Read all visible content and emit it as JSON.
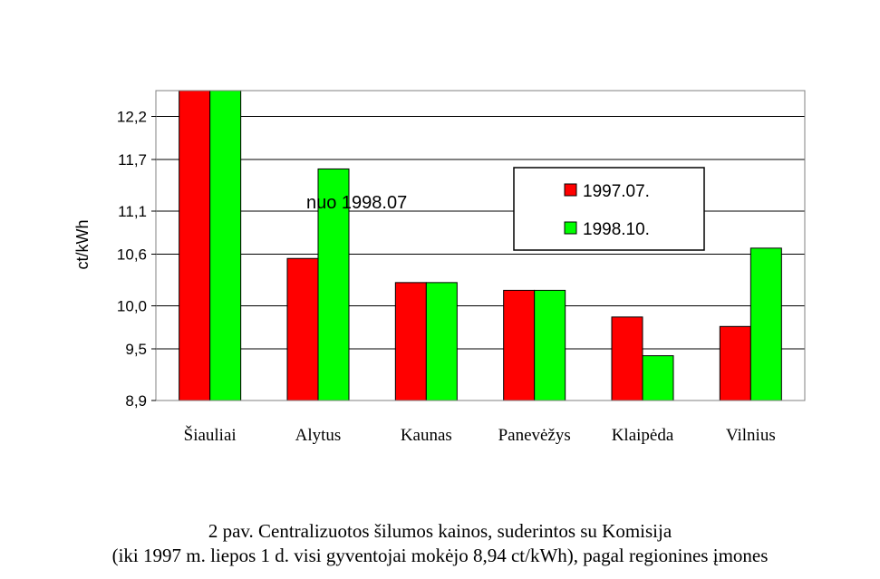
{
  "chart_data": {
    "type": "bar",
    "ylabel": "ct/kWh",
    "ylim": [
      8.9,
      12.5
    ],
    "yticks": [
      "12,2",
      "11,7",
      "11,1",
      "10,6",
      "10,0",
      "9,5",
      "8,9"
    ],
    "categories": [
      "Šiauliai",
      "Alytus",
      "Kaunas",
      "Panevėžys",
      "Klaipėda",
      "Vilnius"
    ],
    "series": [
      {
        "name": "1997.07.",
        "color": "#ff0000",
        "values": [
          12.54,
          10.55,
          10.27,
          10.18,
          9.87,
          9.76
        ]
      },
      {
        "name": "1998.10.",
        "color": "#00ff00",
        "values": [
          12.54,
          11.59,
          10.27,
          10.18,
          9.42,
          10.67
        ]
      }
    ],
    "annotation": "nuo 1998.07",
    "grid": true,
    "legend_position": "right"
  },
  "caption": {
    "line1": "2 pav. Centralizuotos šilumos kainos, suderintos su Komisija",
    "line2": "(iki 1997 m. liepos 1 d. visi gyventojai mokėjo 8,94 ct/kWh), pagal regionines įmones"
  }
}
